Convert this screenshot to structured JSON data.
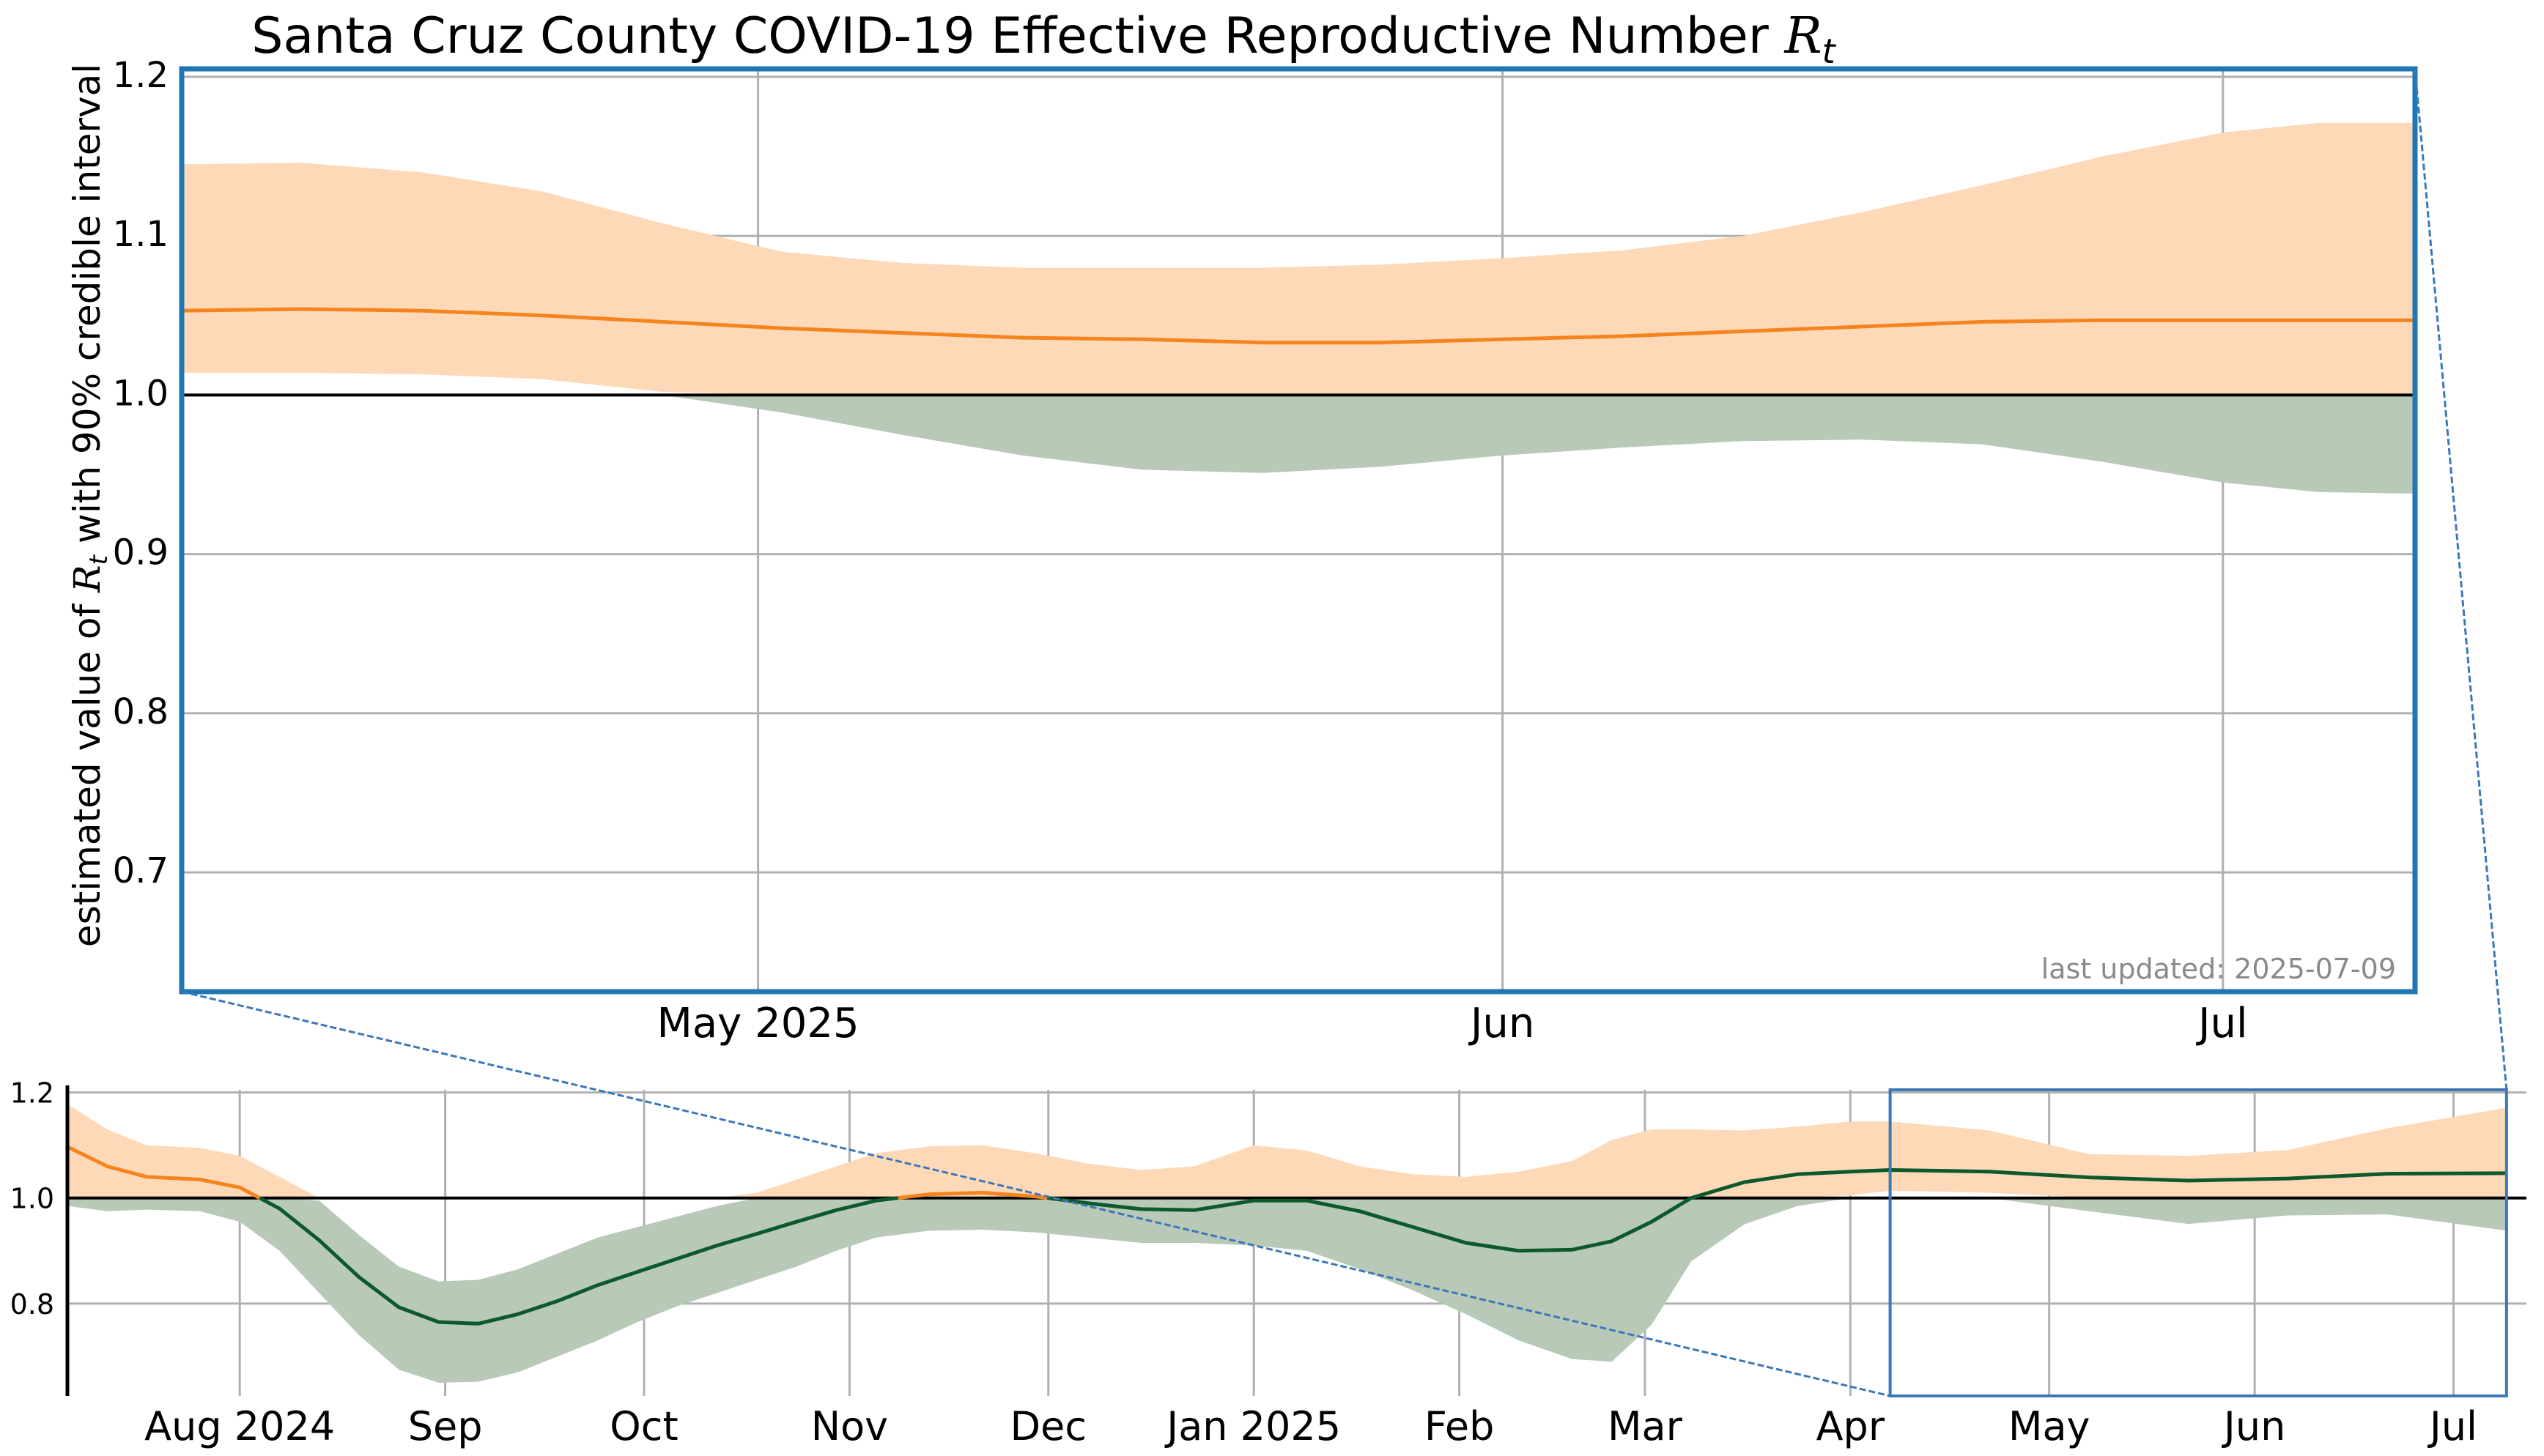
{
  "title": "Santa Cruz County COVID-19 Effective Reproductive Number ",
  "title_math": "R",
  "title_math_sub": "t",
  "ylabel_pre": "estimated value of ",
  "ylabel_math": "R",
  "ylabel_math_sub": "t",
  "ylabel_post": " with 90% credible interval",
  "last_updated": "last updated: 2025-07-09",
  "colors": {
    "above_band": "#fdd9b8",
    "above_line": "#f5841f",
    "below_band": "#b9c9b7",
    "below_line": "#0c5a2c",
    "frame": "#1f77b4",
    "grid": "#b0b0b0",
    "reference": "#000000",
    "annotation": "#8a8a8a"
  },
  "chart_data": [
    {
      "id": "main",
      "type": "area",
      "x_unit": "day",
      "xlim": [
        "2025-04-07",
        "2025-07-09"
      ],
      "ylim": [
        0.625,
        1.205
      ],
      "y_ticks": [
        0.7,
        0.8,
        0.9,
        1.0,
        1.1,
        1.2
      ],
      "y_tick_labels": [
        "0.7",
        "0.8",
        "0.9",
        "1.0",
        "1.1",
        "1.2"
      ],
      "x_ticks": [
        "2025-05-01",
        "2025-06-01",
        "2025-07-01"
      ],
      "x_tick_labels": [
        "May 2025",
        "Jun",
        "Jul"
      ],
      "grid": true,
      "reference_line": 1.0,
      "series": [
        {
          "kind": "median",
          "points": [
            [
              "2025-04-07",
              1.053
            ],
            [
              "2025-04-12",
              1.054
            ],
            [
              "2025-04-17",
              1.053
            ],
            [
              "2025-04-22",
              1.05
            ],
            [
              "2025-04-27",
              1.046
            ],
            [
              "2025-05-02",
              1.042
            ],
            [
              "2025-05-07",
              1.039
            ],
            [
              "2025-05-12",
              1.036
            ],
            [
              "2025-05-17",
              1.035
            ],
            [
              "2025-05-22",
              1.033
            ],
            [
              "2025-05-27",
              1.033
            ],
            [
              "2025-06-01",
              1.035
            ],
            [
              "2025-06-06",
              1.037
            ],
            [
              "2025-06-11",
              1.04
            ],
            [
              "2025-06-16",
              1.043
            ],
            [
              "2025-06-21",
              1.046
            ],
            [
              "2025-06-26",
              1.047
            ],
            [
              "2025-07-01",
              1.047
            ],
            [
              "2025-07-05",
              1.047
            ],
            [
              "2025-07-09",
              1.047
            ]
          ]
        },
        {
          "kind": "interval_90",
          "points": [
            [
              "2025-04-07",
              1.014,
              1.145
            ],
            [
              "2025-04-12",
              1.014,
              1.146
            ],
            [
              "2025-04-17",
              1.013,
              1.14
            ],
            [
              "2025-04-22",
              1.01,
              1.128
            ],
            [
              "2025-04-27",
              1.002,
              1.108
            ],
            [
              "2025-05-02",
              0.989,
              1.09
            ],
            [
              "2025-05-07",
              0.975,
              1.083
            ],
            [
              "2025-05-12",
              0.962,
              1.08
            ],
            [
              "2025-05-17",
              0.953,
              1.08
            ],
            [
              "2025-05-22",
              0.951,
              1.08
            ],
            [
              "2025-05-27",
              0.955,
              1.082
            ],
            [
              "2025-06-01",
              0.962,
              1.086
            ],
            [
              "2025-06-06",
              0.967,
              1.091
            ],
            [
              "2025-06-11",
              0.971,
              1.1
            ],
            [
              "2025-06-16",
              0.972,
              1.115
            ],
            [
              "2025-06-21",
              0.969,
              1.132
            ],
            [
              "2025-06-26",
              0.958,
              1.15
            ],
            [
              "2025-07-01",
              0.945,
              1.165
            ],
            [
              "2025-07-05",
              0.939,
              1.171
            ],
            [
              "2025-07-09",
              0.938,
              1.171
            ]
          ]
        }
      ]
    },
    {
      "id": "overview",
      "type": "area",
      "x_unit": "day",
      "xlim": [
        "2024-07-06",
        "2025-07-12"
      ],
      "ylim": [
        0.625,
        1.205
      ],
      "y_ticks": [
        0.8,
        1.0,
        1.2
      ],
      "y_tick_labels": [
        "0.8",
        "1.0",
        "1.2"
      ],
      "x_ticks": [
        "2024-08-01",
        "2024-09-01",
        "2024-10-01",
        "2024-11-01",
        "2024-12-01",
        "2025-01-01",
        "2025-02-01",
        "2025-03-01",
        "2025-04-01",
        "2025-05-01",
        "2025-06-01",
        "2025-07-01"
      ],
      "x_tick_labels": [
        "Aug 2024",
        "Sep",
        "Oct",
        "Nov",
        "Dec",
        "Jan 2025",
        "Feb",
        "Mar",
        "Apr",
        "May",
        "Jun",
        "Jul"
      ],
      "grid": true,
      "reference_line": 1.0,
      "series": [
        {
          "kind": "median",
          "points": [
            [
              "2024-07-06",
              1.097
            ],
            [
              "2024-07-12",
              1.06
            ],
            [
              "2024-07-18",
              1.04
            ],
            [
              "2024-07-26",
              1.035
            ],
            [
              "2024-08-01",
              1.02
            ],
            [
              "2024-08-07",
              0.98
            ],
            [
              "2024-08-13",
              0.92
            ],
            [
              "2024-08-19",
              0.85
            ],
            [
              "2024-08-25",
              0.793
            ],
            [
              "2024-08-31",
              0.765
            ],
            [
              "2024-09-06",
              0.762
            ],
            [
              "2024-09-12",
              0.78
            ],
            [
              "2024-09-18",
              0.805
            ],
            [
              "2024-09-24",
              0.835
            ],
            [
              "2024-09-30",
              0.86
            ],
            [
              "2024-10-06",
              0.885
            ],
            [
              "2024-10-12",
              0.91
            ],
            [
              "2024-10-18",
              0.932
            ],
            [
              "2024-10-24",
              0.955
            ],
            [
              "2024-10-30",
              0.977
            ],
            [
              "2024-11-05",
              0.995
            ],
            [
              "2024-11-13",
              1.007
            ],
            [
              "2024-11-21",
              1.01
            ],
            [
              "2024-11-29",
              1.003
            ],
            [
              "2024-12-07",
              0.99
            ],
            [
              "2024-12-15",
              0.979
            ],
            [
              "2024-12-23",
              0.977
            ],
            [
              "2025-01-01",
              0.995
            ],
            [
              "2025-01-09",
              0.995
            ],
            [
              "2025-01-17",
              0.975
            ],
            [
              "2025-01-25",
              0.945
            ],
            [
              "2025-02-02",
              0.915
            ],
            [
              "2025-02-10",
              0.9
            ],
            [
              "2025-02-18",
              0.902
            ],
            [
              "2025-02-24",
              0.918
            ],
            [
              "2025-03-02",
              0.955
            ],
            [
              "2025-03-08",
              1.0
            ],
            [
              "2025-03-16",
              1.03
            ],
            [
              "2025-03-24",
              1.045
            ],
            [
              "2025-04-01",
              1.05
            ],
            [
              "2025-04-07",
              1.053
            ],
            [
              "2025-04-22",
              1.05
            ],
            [
              "2025-05-07",
              1.039
            ],
            [
              "2025-05-22",
              1.033
            ],
            [
              "2025-06-06",
              1.037
            ],
            [
              "2025-06-21",
              1.046
            ],
            [
              "2025-07-09",
              1.047
            ]
          ]
        },
        {
          "kind": "interval_90",
          "points": [
            [
              "2024-07-06",
              0.985,
              1.178
            ],
            [
              "2024-07-12",
              0.975,
              1.13
            ],
            [
              "2024-07-18",
              0.978,
              1.1
            ],
            [
              "2024-07-26",
              0.975,
              1.095
            ],
            [
              "2024-08-01",
              0.955,
              1.08
            ],
            [
              "2024-08-07",
              0.9,
              1.04
            ],
            [
              "2024-08-13",
              0.82,
              0.995
            ],
            [
              "2024-08-19",
              0.74,
              0.93
            ],
            [
              "2024-08-25",
              0.675,
              0.87
            ],
            [
              "2024-08-31",
              0.65,
              0.842
            ],
            [
              "2024-09-06",
              0.652,
              0.845
            ],
            [
              "2024-09-12",
              0.67,
              0.865
            ],
            [
              "2024-09-18",
              0.7,
              0.895
            ],
            [
              "2024-09-24",
              0.73,
              0.925
            ],
            [
              "2024-09-30",
              0.765,
              0.945
            ],
            [
              "2024-10-06",
              0.795,
              0.965
            ],
            [
              "2024-10-12",
              0.82,
              0.985
            ],
            [
              "2024-10-18",
              0.845,
              1.01
            ],
            [
              "2024-10-24",
              0.87,
              1.035
            ],
            [
              "2024-10-30",
              0.9,
              1.06
            ],
            [
              "2024-11-05",
              0.925,
              1.085
            ],
            [
              "2024-11-13",
              0.938,
              1.098
            ],
            [
              "2024-11-21",
              0.94,
              1.1
            ],
            [
              "2024-11-29",
              0.935,
              1.085
            ],
            [
              "2024-12-07",
              0.925,
              1.065
            ],
            [
              "2024-12-15",
              0.915,
              1.053
            ],
            [
              "2024-12-23",
              0.915,
              1.06
            ],
            [
              "2025-01-01",
              0.91,
              1.1
            ],
            [
              "2025-01-09",
              0.9,
              1.09
            ],
            [
              "2025-01-17",
              0.865,
              1.06
            ],
            [
              "2025-01-25",
              0.825,
              1.045
            ],
            [
              "2025-02-02",
              0.78,
              1.04
            ],
            [
              "2025-02-10",
              0.73,
              1.05
            ],
            [
              "2025-02-18",
              0.695,
              1.07
            ],
            [
              "2025-02-24",
              0.69,
              1.11
            ],
            [
              "2025-03-02",
              0.76,
              1.13
            ],
            [
              "2025-03-08",
              0.88,
              1.13
            ],
            [
              "2025-03-16",
              0.95,
              1.128
            ],
            [
              "2025-03-24",
              0.985,
              1.135
            ],
            [
              "2025-04-01",
              1.005,
              1.145
            ],
            [
              "2025-04-07",
              1.014,
              1.145
            ],
            [
              "2025-04-22",
              1.01,
              1.128
            ],
            [
              "2025-05-07",
              0.975,
              1.083
            ],
            [
              "2025-05-22",
              0.951,
              1.08
            ],
            [
              "2025-06-06",
              0.967,
              1.091
            ],
            [
              "2025-06-21",
              0.969,
              1.132
            ],
            [
              "2025-07-09",
              0.938,
              1.171
            ]
          ]
        }
      ]
    }
  ]
}
